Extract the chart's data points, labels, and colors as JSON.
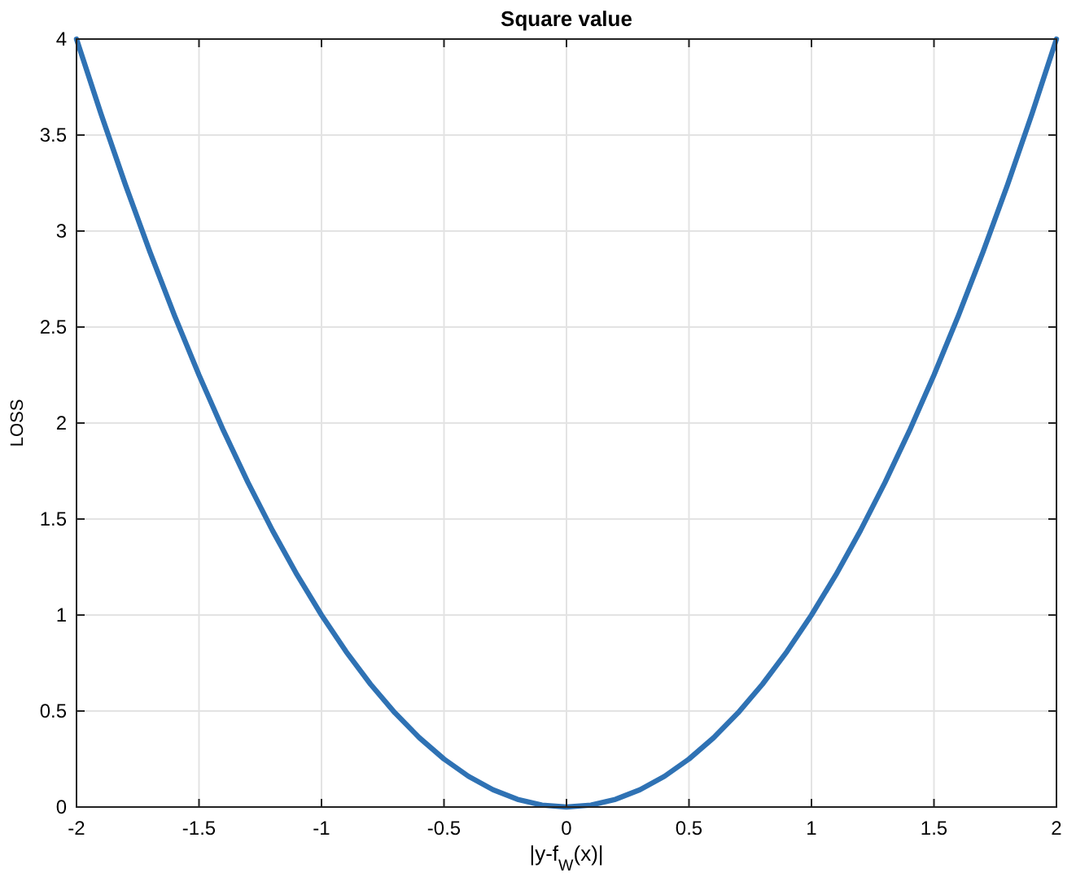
{
  "chart_data": {
    "type": "line",
    "title": "Square value",
    "xlabel": "|y-f$_{W}$(x)|",
    "ylabel": "LOSS",
    "x": [
      -2,
      -1.9,
      -1.8,
      -1.7,
      -1.6,
      -1.5,
      -1.4,
      -1.3,
      -1.2,
      -1.1,
      -1,
      -0.9,
      -0.8,
      -0.7,
      -0.6,
      -0.5,
      -0.4,
      -0.3,
      -0.2,
      -0.1,
      0,
      0.1,
      0.2,
      0.3,
      0.4,
      0.5,
      0.6,
      0.7,
      0.8,
      0.9,
      1,
      1.1,
      1.2,
      1.3,
      1.4,
      1.5,
      1.6,
      1.7,
      1.8,
      1.9,
      2
    ],
    "series": [
      {
        "color": "#2f72b4",
        "values": [
          4,
          3.61,
          3.24,
          2.89,
          2.56,
          2.25,
          1.96,
          1.69,
          1.44,
          1.21,
          1,
          0.81,
          0.64,
          0.49,
          0.36,
          0.25,
          0.16,
          0.09,
          0.04,
          0.01,
          0,
          0.01,
          0.04,
          0.09,
          0.16,
          0.25,
          0.36,
          0.49,
          0.64,
          0.81,
          1,
          1.21,
          1.44,
          1.69,
          1.96,
          2.25,
          2.56,
          2.89,
          3.24,
          3.61,
          4
        ]
      }
    ],
    "xlim": [
      -2,
      2
    ],
    "xticks": [
      -2,
      -1.5,
      -1,
      -0.5,
      0,
      0.5,
      1,
      1.5,
      2
    ],
    "ylim": [
      0,
      4
    ],
    "yticks": [
      0,
      0.5,
      1,
      1.5,
      2,
      2.5,
      3,
      3.5,
      4
    ],
    "grid": true,
    "line_style": "solid",
    "marker": "none"
  }
}
